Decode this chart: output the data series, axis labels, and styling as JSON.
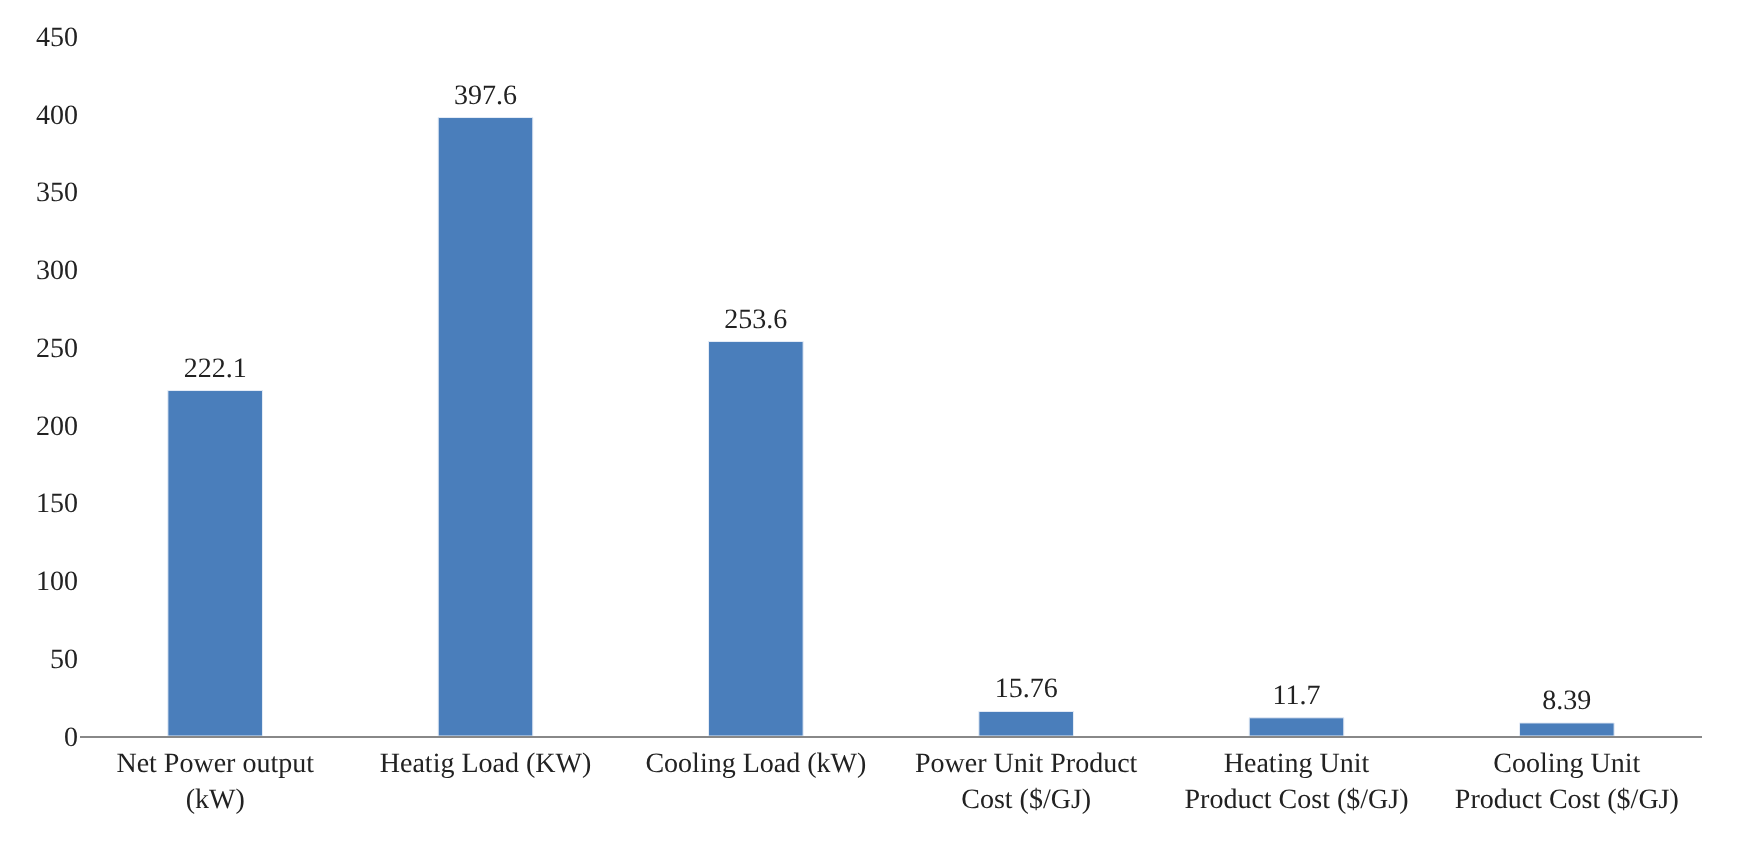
{
  "chart_data": {
    "type": "bar",
    "categories": [
      "Net Power output (kW)",
      "Heatig Load (KW)",
      "Cooling Load (kW)",
      "Power Unit Product Cost ($/GJ)",
      "Heating Unit Product Cost ($/GJ)",
      "Cooling Unit Product Cost ($/GJ)"
    ],
    "values": [
      222.1,
      397.6,
      253.6,
      15.76,
      11.7,
      8.39
    ],
    "color": "#4a7ebb",
    "ylim": [
      0,
      450
    ],
    "yticks": [
      0,
      50,
      100,
      150,
      200,
      250,
      300,
      350,
      400,
      450
    ],
    "data_labels": true
  }
}
